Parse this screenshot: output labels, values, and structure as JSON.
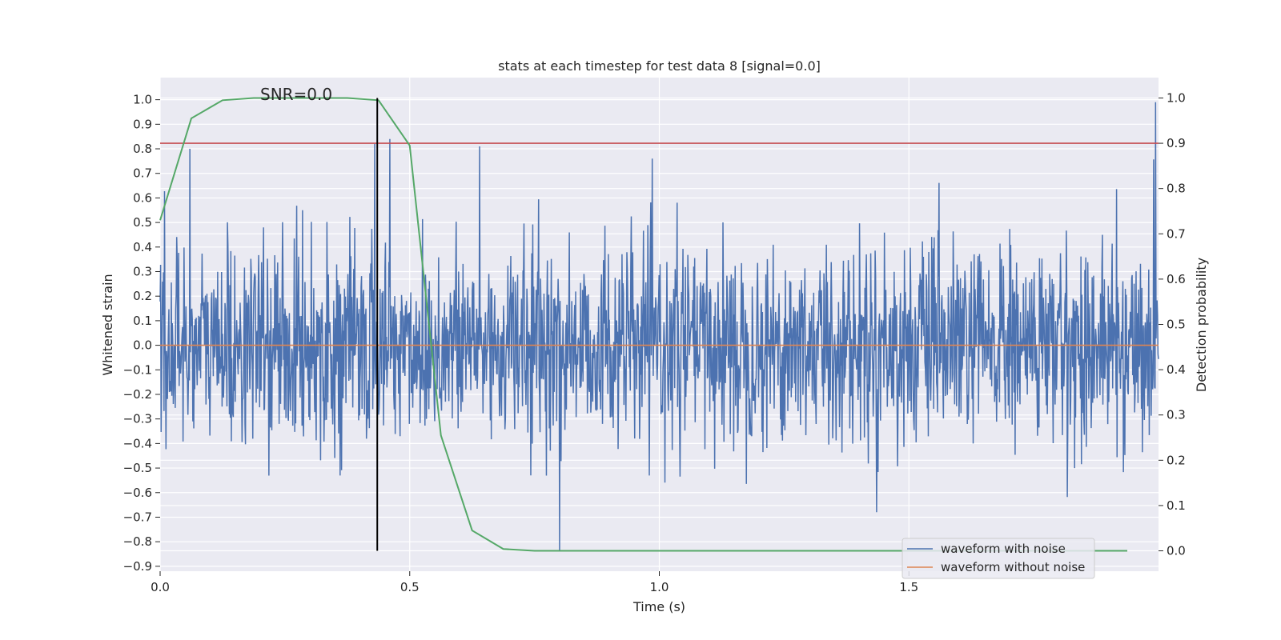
{
  "chart_data": {
    "type": "line",
    "title": "stats at each timestep for test data 8 [signal=0.0]",
    "xlabel": "Time (s)",
    "ylabel_left": "Whitened strain",
    "ylabel_right": "Detection probability",
    "xlim": [
      0.0,
      2.0
    ],
    "ylim_left": [
      -0.92,
      1.09
    ],
    "ylim_right": [
      -0.045,
      1.045
    ],
    "xticks": [
      0.0,
      0.5,
      1.0,
      1.5
    ],
    "xtick_labels": [
      "0.0",
      "0.5",
      "1.0",
      "1.5"
    ],
    "yticks_left": [
      1.0,
      0.9,
      0.8,
      0.7,
      0.6,
      0.5,
      0.4,
      0.3,
      0.2,
      0.1,
      0.0,
      -0.1,
      -0.2,
      -0.3,
      -0.4,
      -0.5,
      -0.6,
      -0.7,
      -0.8,
      -0.9
    ],
    "ytick_labels_left": [
      "1.0",
      "0.9",
      "0.8",
      "0.7",
      "0.6",
      "0.5",
      "0.4",
      "0.3",
      "0.2",
      "0.1",
      "0.0",
      "−0.1",
      "−0.2",
      "−0.3",
      "−0.4",
      "−0.5",
      "−0.6",
      "−0.7",
      "−0.8",
      "−0.9"
    ],
    "yticks_right": [
      1.0,
      0.9,
      0.8,
      0.7,
      0.6,
      0.5,
      0.4,
      0.3,
      0.2,
      0.1,
      0.0
    ],
    "ytick_labels_right": [
      "1.0",
      "0.9",
      "0.8",
      "0.7",
      "0.6",
      "0.5",
      "0.4",
      "0.3",
      "0.2",
      "0.1",
      "0.0"
    ],
    "annotation": "SNR=0.0",
    "grid": true,
    "legend_position": "lower-right",
    "series": [
      {
        "name": "waveform with noise",
        "color": "#4c72b0",
        "axis": "left",
        "kind": "noise",
        "t_start": 0.0,
        "t_end": 2.0,
        "samples": 2048,
        "amplitude_range": [
          -0.84,
          1.0
        ],
        "peaks": [
          {
            "t": 0.06,
            "v": 0.8
          },
          {
            "t": 0.43,
            "v": 0.82
          },
          {
            "t": 0.46,
            "v": 0.84
          },
          {
            "t": 0.64,
            "v": 0.81
          },
          {
            "t": 0.8,
            "v": -0.84
          },
          {
            "t": 1.994,
            "v": 0.99
          }
        ]
      },
      {
        "name": "waveform without noise",
        "color": "#dd8452",
        "axis": "left",
        "x": [
          0.0,
          2.0
        ],
        "y": [
          0.0,
          0.0
        ]
      },
      {
        "name": "",
        "color": "#55a868",
        "axis": "right",
        "x": [
          0.0,
          0.0625,
          0.125,
          0.1875,
          0.25,
          0.3125,
          0.375,
          0.4375,
          0.5,
          0.5625,
          0.625,
          0.6875,
          0.75,
          0.8125,
          0.875,
          0.9375,
          1.0,
          1.0625,
          1.125,
          1.1875,
          1.25,
          1.3125,
          1.375,
          1.4375,
          1.5,
          1.5625,
          1.625,
          1.6875,
          1.75,
          1.8125,
          1.875,
          1.9375
        ],
        "y": [
          0.73,
          0.955,
          0.995,
          1.0,
          1.0,
          1.0,
          1.0,
          0.995,
          0.895,
          0.255,
          0.045,
          0.004,
          0.0,
          0.0,
          0.0,
          0.0,
          0.0,
          0.0,
          0.0,
          0.0,
          0.0,
          0.0,
          0.0,
          0.0,
          0.0,
          0.0,
          0.0,
          0.0,
          0.0,
          0.0,
          0.0,
          0.0
        ]
      },
      {
        "name": "",
        "color": "#c44e52",
        "axis": "right",
        "x": [
          0.0,
          2.0
        ],
        "y": [
          0.9,
          0.9
        ]
      }
    ],
    "vline": {
      "x": 0.435,
      "y": [
        0.0,
        1.0
      ],
      "axis": "right",
      "color": "#000000"
    }
  }
}
